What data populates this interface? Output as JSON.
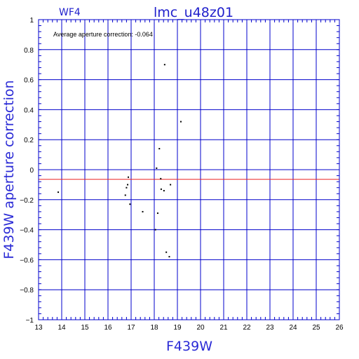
{
  "chart_data": {
    "type": "scatter",
    "panel_label": "WF4",
    "title": "lmc_u48z01",
    "annotation": "Average aperture correction: -0.064",
    "xlabel": "F439W",
    "ylabel": "F439W aperture correction",
    "xlim": [
      13,
      26
    ],
    "ylim": [
      -1,
      1
    ],
    "x_ticks": [
      "13",
      "14",
      "15",
      "16",
      "17",
      "18",
      "19",
      "20",
      "21",
      "22",
      "23",
      "24",
      "25",
      "26"
    ],
    "y_ticks": [
      "1",
      "0.8",
      "0.6",
      "0.4",
      "0.2",
      "0",
      "−0.2",
      "−0.4",
      "−0.6",
      "−0.8",
      "−1"
    ],
    "grid": true,
    "reference_lines": [
      {
        "name": "zero",
        "y": 0,
        "color": "#0000cc"
      },
      {
        "name": "average",
        "y": -0.064,
        "color": "#ee2222"
      }
    ],
    "points": [
      {
        "x": 13.85,
        "y": -0.15
      },
      {
        "x": 16.75,
        "y": -0.17
      },
      {
        "x": 16.8,
        "y": -0.12
      },
      {
        "x": 16.85,
        "y": -0.1
      },
      {
        "x": 16.88,
        "y": -0.05
      },
      {
        "x": 16.95,
        "y": -0.23
      },
      {
        "x": 17.5,
        "y": -0.28
      },
      {
        "x": 18.05,
        "y": -0.4
      },
      {
        "x": 18.1,
        "y": 0.01
      },
      {
        "x": 18.15,
        "y": -0.29
      },
      {
        "x": 18.22,
        "y": 0.14
      },
      {
        "x": 18.28,
        "y": -0.06
      },
      {
        "x": 18.3,
        "y": -0.13
      },
      {
        "x": 18.42,
        "y": -0.14
      },
      {
        "x": 18.45,
        "y": 0.7
      },
      {
        "x": 18.52,
        "y": -0.55
      },
      {
        "x": 18.65,
        "y": -0.58
      },
      {
        "x": 18.7,
        "y": -0.1
      },
      {
        "x": 19.15,
        "y": 0.32
      }
    ],
    "colors": {
      "axes": "#0000cc",
      "points": "#000000",
      "labels": "#2b2bd6"
    }
  }
}
